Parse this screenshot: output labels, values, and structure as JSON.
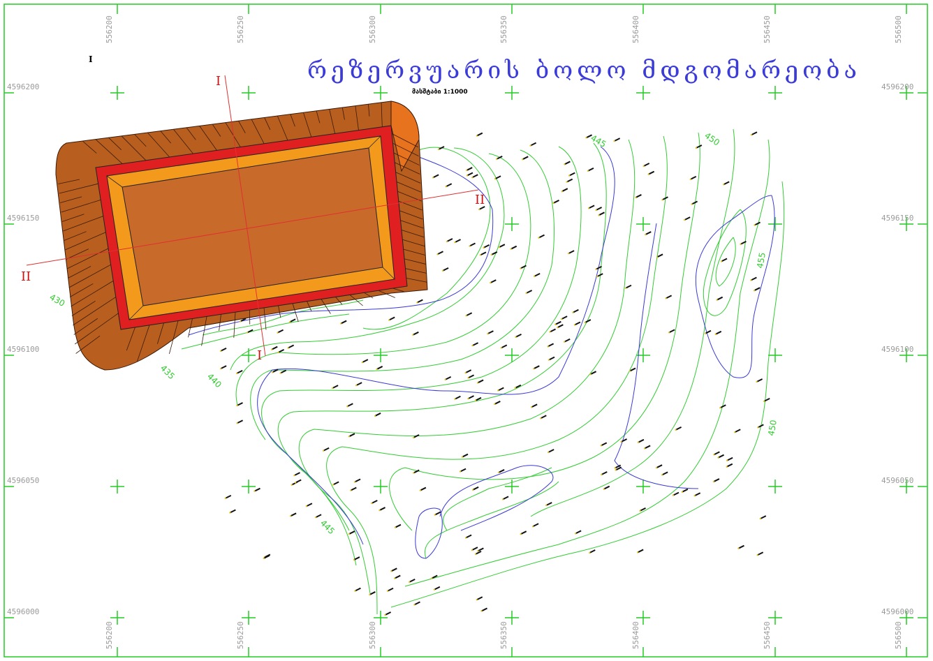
{
  "map": {
    "title": "რეზერვუარის ბოლო მდგომარეობა",
    "scale_text": "მასშტაბი 1:1000",
    "top_marker": "I",
    "colors": {
      "frame": "#22cc22",
      "contour": "#33cc33",
      "index_contour": "#3a3ad6",
      "fill_slope": "#b85f1f",
      "reservoir_bottom": "#c86a2a",
      "berm": "#f39a1c",
      "crest": "#e02020",
      "section_line": "#e03030"
    }
  },
  "grid": {
    "x_labels": [
      "556200",
      "556250",
      "556300",
      "556350",
      "556400",
      "556450",
      "556500"
    ],
    "y_labels": [
      "4596200",
      "4596150",
      "4596100",
      "4596050",
      "4596000"
    ]
  },
  "contours": {
    "labels": [
      "450",
      "445",
      "455",
      "430",
      "435",
      "440",
      "450",
      "445"
    ]
  },
  "sections": {
    "I_top": "I",
    "I_bottom": "I",
    "II_left": "II",
    "II_right": "II"
  }
}
